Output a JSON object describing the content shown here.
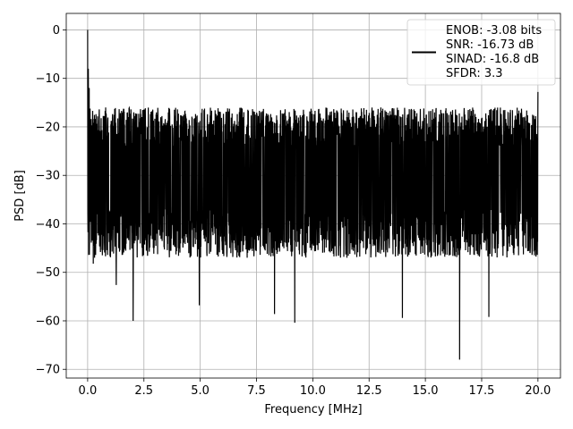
{
  "chart_data": {
    "type": "line",
    "title": "",
    "xlabel": "Frequency [MHz]",
    "ylabel": "PSD [dB]",
    "xlim": [
      -0.95,
      21.0
    ],
    "ylim": [
      -71.8,
      3.4
    ],
    "x_ticks": [
      0.0,
      2.5,
      5.0,
      7.5,
      10.0,
      12.5,
      15.0,
      17.5,
      20.0
    ],
    "x_tick_labels": [
      "0.0",
      "2.5",
      "5.0",
      "7.5",
      "10.0",
      "12.5",
      "15.0",
      "17.5",
      "20.0"
    ],
    "y_ticks": [
      0,
      -10,
      -20,
      -30,
      -40,
      -50,
      -60,
      -70
    ],
    "y_tick_labels": [
      "0",
      "−10",
      "−20",
      "−30",
      "−40",
      "−50",
      "−60",
      "−70"
    ],
    "grid": true,
    "legend": {
      "location": "upper right"
    },
    "series": [
      {
        "name": "ENOB: -3.08 bits\nSNR: -16.73 dB\nSINAD: -16.8 dB\nSFDR: 3.3",
        "color": "#000000",
        "x_range": [
          0.0,
          20.0
        ],
        "noise_band": {
          "max_envelope_db": -16.0,
          "min_envelope_db": -49.0,
          "mean_db": -29.0
        },
        "peaks": [
          {
            "x": 0.0,
            "y": 0.0
          },
          {
            "x": 0.03,
            "y": -8.0
          },
          {
            "x": 0.07,
            "y": -12.0
          },
          {
            "x": 20.0,
            "y": -12.8
          }
        ],
        "dips": [
          {
            "x": 0.25,
            "y": -48.2
          },
          {
            "x": 1.27,
            "y": -52.6
          },
          {
            "x": 2.02,
            "y": -60.0
          },
          {
            "x": 4.96,
            "y": -56.8
          },
          {
            "x": 8.3,
            "y": -58.6
          },
          {
            "x": 9.2,
            "y": -60.4
          },
          {
            "x": 13.98,
            "y": -59.4
          },
          {
            "x": 16.52,
            "y": -68.0
          },
          {
            "x": 17.82,
            "y": -59.2
          }
        ]
      }
    ]
  }
}
